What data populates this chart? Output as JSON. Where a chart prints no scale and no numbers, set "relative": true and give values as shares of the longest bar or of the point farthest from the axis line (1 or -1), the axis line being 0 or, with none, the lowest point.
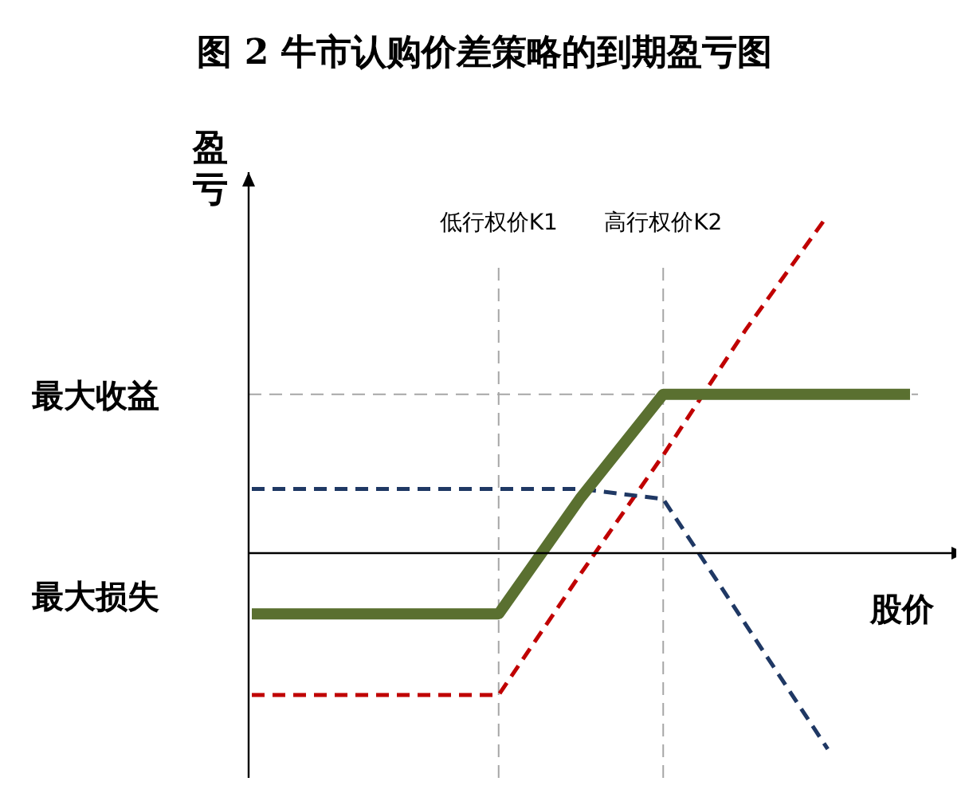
{
  "chart_data": {
    "type": "line",
    "title": "图 2 牛市认购价差策略的到期盈亏图",
    "xlabel": "股价",
    "ylabel": "盈亏",
    "relative": true,
    "categories": [
      null,
      null,
      null,
      "低行权价K1",
      null,
      "高行权价K2",
      null,
      null,
      null
    ],
    "series": [
      {
        "color": "#c00000",
        "line_style": "dashed",
        "values": [
          -0.42,
          -0.42,
          -0.42,
          -0.42,
          -0.06,
          0.29,
          0.66,
          1,
          null
        ]
      },
      {
        "color": "#1f3864",
        "line_style": "dashed",
        "values": [
          0.19,
          0.19,
          0.19,
          0.19,
          0.19,
          0.16,
          -0.21,
          -0.58,
          null
        ]
      },
      {
        "color": "#5a7030",
        "line_style": "solid",
        "values": [
          -0.18,
          -0.18,
          -0.18,
          -0.18,
          0.165,
          0.47,
          0.47,
          0.47,
          0.47
        ]
      }
    ],
    "ref_lines": [
      {
        "axis": "x",
        "value": "低行权价K1",
        "color": "#a6a6a6",
        "line_style": "dashed"
      },
      {
        "axis": "x",
        "value": "高行权价K2",
        "color": "#a6a6a6",
        "line_style": "dashed"
      },
      {
        "axis": "y",
        "value": 0.47,
        "color": "#a6a6a6",
        "line_style": "dashed"
      }
    ],
    "annotations": [
      "最大收益",
      "最大损失"
    ]
  }
}
